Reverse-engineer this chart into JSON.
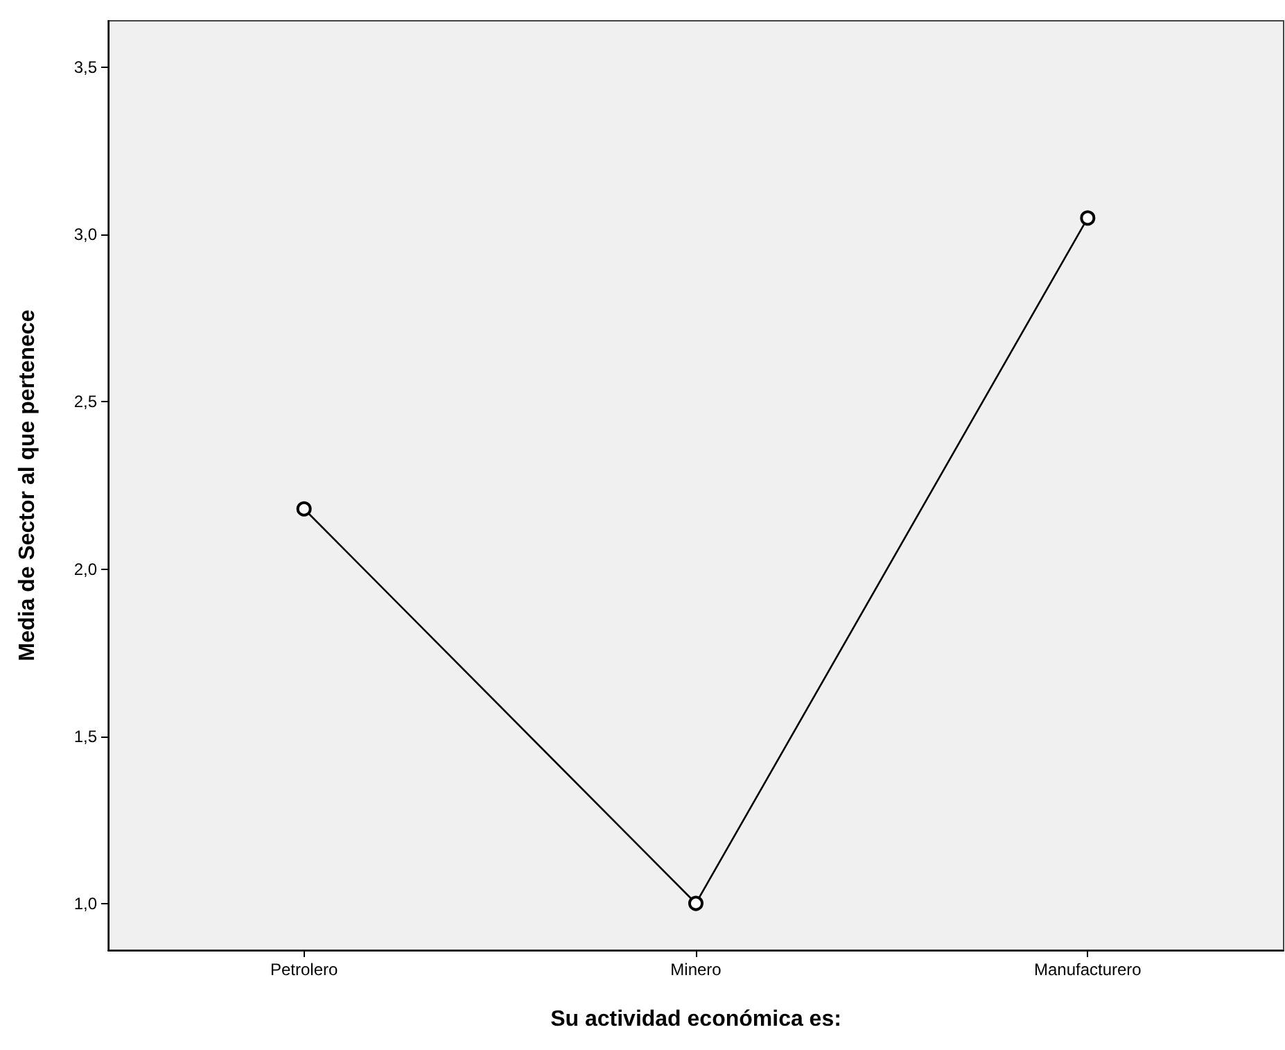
{
  "chart_data": {
    "type": "line",
    "xlabel": "Su actividad económica es:",
    "ylabel": "Media de Sector al que pertenece",
    "categories": [
      "Petrolero",
      "Minero",
      "Manufacturero"
    ],
    "series": [
      {
        "color": "#000000",
        "values": [
          2.18,
          1.0,
          3.05
        ]
      }
    ],
    "ylim": [
      0.86,
      3.64
    ],
    "yticks": [
      {
        "value": 1,
        "label": "1,0"
      },
      {
        "value": 1.5,
        "label": "1,5"
      },
      {
        "value": 2,
        "label": "2,0"
      },
      {
        "value": 2.5,
        "label": "2,5"
      },
      {
        "value": 3,
        "label": "3,0"
      },
      {
        "value": 3.5,
        "label": "3,5"
      }
    ],
    "marker": "circle",
    "line_style": "solid"
  }
}
